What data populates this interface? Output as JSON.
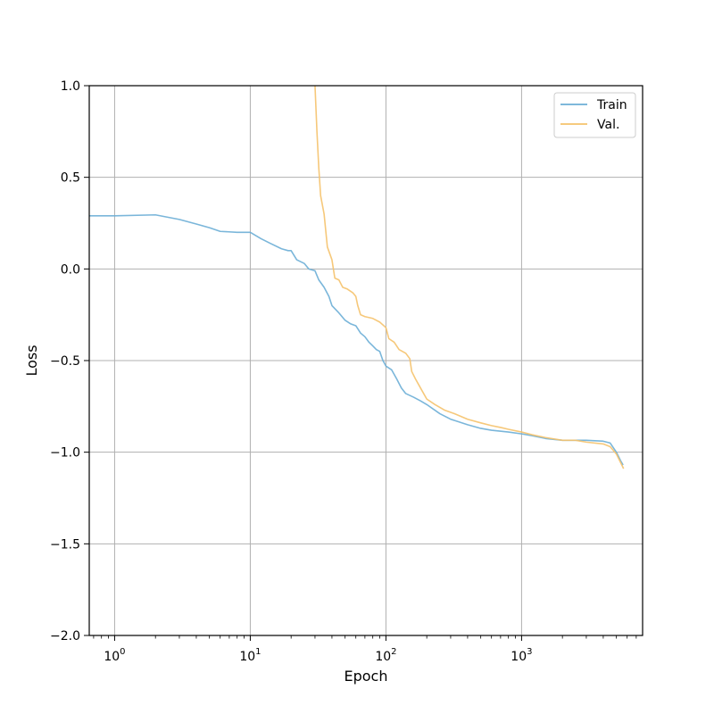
{
  "chart_data": {
    "type": "line",
    "xlabel": "Epoch",
    "ylabel": "Loss",
    "xscale": "log",
    "xlim": [
      0.65,
      7800
    ],
    "ylim": [
      -2.0,
      1.0
    ],
    "x_tick_labels": [
      {
        "base": "10",
        "exp": "0",
        "value": 1
      },
      {
        "base": "10",
        "exp": "1",
        "value": 10
      },
      {
        "base": "10",
        "exp": "2",
        "value": 100
      },
      {
        "base": "10",
        "exp": "3",
        "value": 1000
      }
    ],
    "y_ticks": [
      {
        "value": 1.0,
        "label": "1.0"
      },
      {
        "value": 0.5,
        "label": "0.5"
      },
      {
        "value": 0.0,
        "label": "0.0"
      },
      {
        "value": -0.5,
        "label": "−0.5"
      },
      {
        "value": -1.0,
        "label": "−1.0"
      },
      {
        "value": -1.5,
        "label": "−1.5"
      },
      {
        "value": -2.0,
        "label": "−2.0"
      }
    ],
    "grid": true,
    "legend_position": "top-right",
    "series": [
      {
        "name": "Train",
        "color": "#6baed6",
        "points": [
          [
            0.65,
            0.29
          ],
          [
            1,
            0.29
          ],
          [
            2,
            0.295
          ],
          [
            3,
            0.27
          ],
          [
            4,
            0.245
          ],
          [
            5,
            0.225
          ],
          [
            6,
            0.205
          ],
          [
            8,
            0.2
          ],
          [
            10,
            0.2
          ],
          [
            12,
            0.165
          ],
          [
            14,
            0.14
          ],
          [
            17,
            0.11
          ],
          [
            19,
            0.1
          ],
          [
            20,
            0.1
          ],
          [
            22,
            0.05
          ],
          [
            25,
            0.03
          ],
          [
            27,
            0.0
          ],
          [
            30,
            -0.01
          ],
          [
            32,
            -0.06
          ],
          [
            35,
            -0.1
          ],
          [
            38,
            -0.15
          ],
          [
            40,
            -0.2
          ],
          [
            45,
            -0.24
          ],
          [
            50,
            -0.28
          ],
          [
            55,
            -0.3
          ],
          [
            60,
            -0.31
          ],
          [
            65,
            -0.35
          ],
          [
            70,
            -0.37
          ],
          [
            75,
            -0.4
          ],
          [
            80,
            -0.42
          ],
          [
            85,
            -0.44
          ],
          [
            90,
            -0.45
          ],
          [
            95,
            -0.5
          ],
          [
            100,
            -0.53
          ],
          [
            110,
            -0.55
          ],
          [
            120,
            -0.6
          ],
          [
            130,
            -0.65
          ],
          [
            140,
            -0.68
          ],
          [
            160,
            -0.7
          ],
          [
            180,
            -0.72
          ],
          [
            200,
            -0.74
          ],
          [
            250,
            -0.79
          ],
          [
            300,
            -0.82
          ],
          [
            400,
            -0.85
          ],
          [
            500,
            -0.87
          ],
          [
            600,
            -0.88
          ],
          [
            800,
            -0.89
          ],
          [
            1000,
            -0.9
          ],
          [
            1200,
            -0.91
          ],
          [
            1500,
            -0.925
          ],
          [
            2000,
            -0.935
          ],
          [
            3000,
            -0.935
          ],
          [
            4000,
            -0.94
          ],
          [
            4500,
            -0.95
          ],
          [
            5000,
            -1.0
          ],
          [
            5400,
            -1.05
          ],
          [
            5600,
            -1.07
          ]
        ]
      },
      {
        "name": "Val.",
        "color": "#f5c26b",
        "points": [
          [
            30,
            1.0
          ],
          [
            31,
            0.75
          ],
          [
            32,
            0.55
          ],
          [
            33,
            0.4
          ],
          [
            35,
            0.3
          ],
          [
            37,
            0.12
          ],
          [
            40,
            0.05
          ],
          [
            42,
            -0.05
          ],
          [
            45,
            -0.06
          ],
          [
            48,
            -0.1
          ],
          [
            52,
            -0.11
          ],
          [
            57,
            -0.13
          ],
          [
            60,
            -0.15
          ],
          [
            62,
            -0.2
          ],
          [
            65,
            -0.25
          ],
          [
            70,
            -0.26
          ],
          [
            80,
            -0.27
          ],
          [
            90,
            -0.29
          ],
          [
            100,
            -0.32
          ],
          [
            105,
            -0.38
          ],
          [
            115,
            -0.4
          ],
          [
            125,
            -0.44
          ],
          [
            140,
            -0.46
          ],
          [
            150,
            -0.49
          ],
          [
            155,
            -0.56
          ],
          [
            165,
            -0.6
          ],
          [
            180,
            -0.65
          ],
          [
            200,
            -0.71
          ],
          [
            230,
            -0.74
          ],
          [
            270,
            -0.77
          ],
          [
            320,
            -0.79
          ],
          [
            400,
            -0.82
          ],
          [
            500,
            -0.84
          ],
          [
            600,
            -0.855
          ],
          [
            700,
            -0.865
          ],
          [
            800,
            -0.875
          ],
          [
            1000,
            -0.89
          ],
          [
            1200,
            -0.905
          ],
          [
            1500,
            -0.92
          ],
          [
            2000,
            -0.935
          ],
          [
            2500,
            -0.935
          ],
          [
            3000,
            -0.945
          ],
          [
            4000,
            -0.955
          ],
          [
            4500,
            -0.97
          ],
          [
            5000,
            -1.01
          ],
          [
            5400,
            -1.06
          ],
          [
            5650,
            -1.09
          ]
        ]
      }
    ]
  }
}
